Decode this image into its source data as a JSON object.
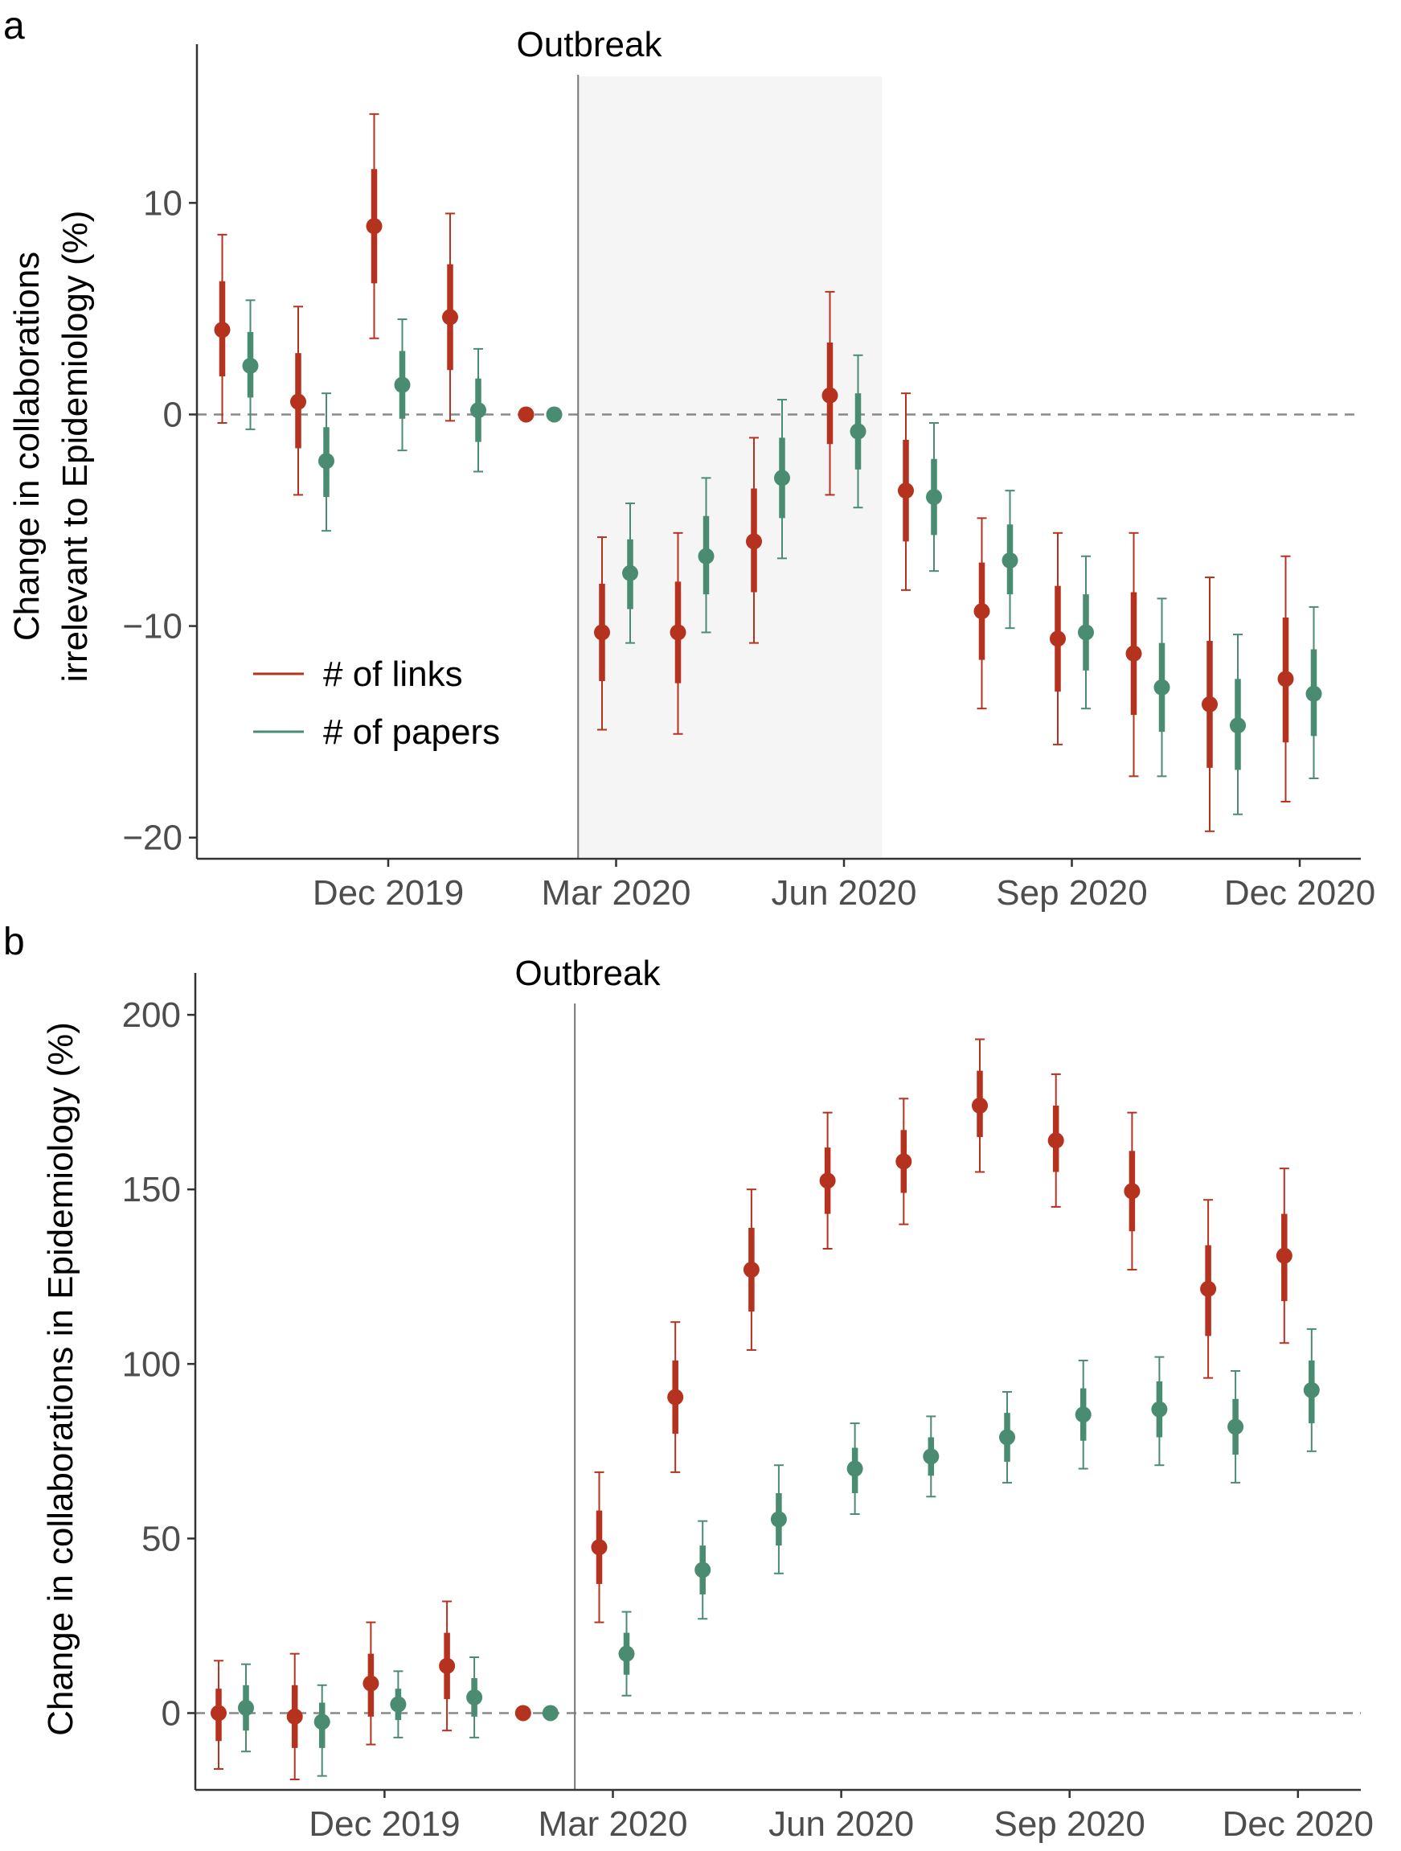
{
  "colors": {
    "links": "#b5321f",
    "papers": "#4a8c72",
    "shade": "#f5f5f5",
    "zero_line": "#888888",
    "axis": "#333333"
  },
  "chart_data": [
    {
      "panel": "a",
      "type": "scatter",
      "ylabel_lines": [
        "Change in collaborations",
        "irrelevant to Epidemiology (%)"
      ],
      "annotation": "Outbreak",
      "ylim": [
        -21,
        17.5
      ],
      "y_ticks": [
        10,
        0,
        -10,
        -20
      ],
      "y_tick_labels": [
        "10",
        "0",
        "−10",
        "−20"
      ],
      "x_tick_labels": [
        "Dec 2019",
        "Mar 2020",
        "Jun 2020",
        "Sep 2020",
        "Dec 2020"
      ],
      "x_tick_months": [
        3,
        6,
        9,
        12,
        15
      ],
      "outbreak_month": 5.5,
      "shaded_months": [
        5.5,
        9.5
      ],
      "legend_position": "left-center",
      "series": [
        {
          "name": "# of links",
          "color_key": "links",
          "points": [
            {
              "month": 1,
              "value": 4.0,
              "ci95": [
                -0.4,
                8.5
              ],
              "ci68": [
                1.8,
                6.3
              ]
            },
            {
              "month": 2,
              "value": 0.6,
              "ci95": [
                -3.8,
                5.1
              ],
              "ci68": [
                -1.6,
                2.9
              ]
            },
            {
              "month": 3,
              "value": 8.9,
              "ci95": [
                3.6,
                14.2
              ],
              "ci68": [
                6.2,
                11.6
              ]
            },
            {
              "month": 4,
              "value": 4.6,
              "ci95": [
                -0.3,
                9.5
              ],
              "ci68": [
                2.1,
                7.1
              ]
            },
            {
              "month": 5,
              "value": 0.0
            },
            {
              "month": 6,
              "value": -10.3,
              "ci95": [
                -14.9,
                -5.8
              ],
              "ci68": [
                -12.6,
                -8.0
              ]
            },
            {
              "month": 7,
              "value": -10.3,
              "ci95": [
                -15.1,
                -5.6
              ],
              "ci68": [
                -12.7,
                -7.9
              ]
            },
            {
              "month": 8,
              "value": -6.0,
              "ci95": [
                -10.8,
                -1.1
              ],
              "ci68": [
                -8.4,
                -3.5
              ]
            },
            {
              "month": 9,
              "value": 0.9,
              "ci95": [
                -3.8,
                5.8
              ],
              "ci68": [
                -1.4,
                3.4
              ]
            },
            {
              "month": 10,
              "value": -3.6,
              "ci95": [
                -8.3,
                1.0
              ],
              "ci68": [
                -6.0,
                -1.2
              ]
            },
            {
              "month": 11,
              "value": -9.3,
              "ci95": [
                -13.9,
                -4.9
              ],
              "ci68": [
                -11.6,
                -7.0
              ]
            },
            {
              "month": 12,
              "value": -10.6,
              "ci95": [
                -15.6,
                -5.6
              ],
              "ci68": [
                -13.1,
                -8.1
              ]
            },
            {
              "month": 13,
              "value": -11.3,
              "ci95": [
                -17.1,
                -5.6
              ],
              "ci68": [
                -14.2,
                -8.4
              ]
            },
            {
              "month": 14,
              "value": -13.7,
              "ci95": [
                -19.7,
                -7.7
              ],
              "ci68": [
                -16.7,
                -10.7
              ]
            },
            {
              "month": 15,
              "value": -12.5,
              "ci95": [
                -18.3,
                -6.7
              ],
              "ci68": [
                -15.5,
                -9.6
              ]
            }
          ]
        },
        {
          "name": "# of papers",
          "color_key": "papers",
          "points": [
            {
              "month": 1,
              "value": 2.3,
              "ci95": [
                -0.7,
                5.4
              ],
              "ci68": [
                0.8,
                3.9
              ]
            },
            {
              "month": 2,
              "value": -2.2,
              "ci95": [
                -5.5,
                1.0
              ],
              "ci68": [
                -3.9,
                -0.6
              ]
            },
            {
              "month": 3,
              "value": 1.4,
              "ci95": [
                -1.7,
                4.5
              ],
              "ci68": [
                -0.2,
                3.0
              ]
            },
            {
              "month": 4,
              "value": 0.2,
              "ci95": [
                -2.7,
                3.1
              ],
              "ci68": [
                -1.3,
                1.7
              ]
            },
            {
              "month": 5,
              "value": 0.0
            },
            {
              "month": 6,
              "value": -7.5,
              "ci95": [
                -10.8,
                -4.2
              ],
              "ci68": [
                -9.2,
                -5.9
              ]
            },
            {
              "month": 7,
              "value": -6.7,
              "ci95": [
                -10.3,
                -3.0
              ],
              "ci68": [
                -8.5,
                -4.8
              ]
            },
            {
              "month": 8,
              "value": -3.0,
              "ci95": [
                -6.8,
                0.7
              ],
              "ci68": [
                -4.9,
                -1.1
              ]
            },
            {
              "month": 9,
              "value": -0.8,
              "ci95": [
                -4.4,
                2.8
              ],
              "ci68": [
                -2.6,
                1.0
              ]
            },
            {
              "month": 10,
              "value": -3.9,
              "ci95": [
                -7.4,
                -0.4
              ],
              "ci68": [
                -5.7,
                -2.1
              ]
            },
            {
              "month": 11,
              "value": -6.9,
              "ci95": [
                -10.1,
                -3.6
              ],
              "ci68": [
                -8.5,
                -5.2
              ]
            },
            {
              "month": 12,
              "value": -10.3,
              "ci95": [
                -13.9,
                -6.7
              ],
              "ci68": [
                -12.1,
                -8.5
              ]
            },
            {
              "month": 13,
              "value": -12.9,
              "ci95": [
                -17.1,
                -8.7
              ],
              "ci68": [
                -15.0,
                -10.8
              ]
            },
            {
              "month": 14,
              "value": -14.7,
              "ci95": [
                -18.9,
                -10.4
              ],
              "ci68": [
                -16.8,
                -12.5
              ]
            },
            {
              "month": 15,
              "value": -13.2,
              "ci95": [
                -17.2,
                -9.1
              ],
              "ci68": [
                -15.2,
                -11.1
              ]
            }
          ]
        }
      ]
    },
    {
      "panel": "b",
      "type": "scatter",
      "ylabel_lines": [
        "Change in collaborations in Epidemiology (%)"
      ],
      "annotation": "Outbreak",
      "ylim": [
        -22,
        212
      ],
      "y_ticks": [
        200,
        150,
        100,
        50,
        0
      ],
      "y_tick_labels": [
        "200",
        "150",
        "100",
        "50",
        "0"
      ],
      "x_tick_labels": [
        "Dec 2019",
        "Mar 2020",
        "Jun 2020",
        "Sep 2020",
        "Dec 2020"
      ],
      "x_tick_months": [
        3,
        6,
        9,
        12,
        15
      ],
      "outbreak_month": 5.5,
      "series": [
        {
          "name": "# of links",
          "color_key": "links",
          "points": [
            {
              "month": 1,
              "value": 0.0,
              "ci95": [
                -16,
                15
              ],
              "ci68": [
                -8,
                7
              ]
            },
            {
              "month": 2,
              "value": -1.0,
              "ci95": [
                -19,
                17
              ],
              "ci68": [
                -10,
                8
              ]
            },
            {
              "month": 3,
              "value": 8.5,
              "ci95": [
                -9,
                26
              ],
              "ci68": [
                -1,
                17
              ]
            },
            {
              "month": 4,
              "value": 13.5,
              "ci95": [
                -5,
                32
              ],
              "ci68": [
                4,
                23
              ]
            },
            {
              "month": 5,
              "value": 0.0
            },
            {
              "month": 6,
              "value": 47.5,
              "ci95": [
                26,
                69
              ],
              "ci68": [
                37,
                58
              ]
            },
            {
              "month": 7,
              "value": 90.5,
              "ci95": [
                69,
                112
              ],
              "ci68": [
                80,
                101
              ]
            },
            {
              "month": 8,
              "value": 127.0,
              "ci95": [
                104,
                150
              ],
              "ci68": [
                115,
                139
              ]
            },
            {
              "month": 9,
              "value": 152.5,
              "ci95": [
                133,
                172
              ],
              "ci68": [
                143,
                162
              ]
            },
            {
              "month": 10,
              "value": 158.0,
              "ci95": [
                140,
                176
              ],
              "ci68": [
                149,
                167
              ]
            },
            {
              "month": 11,
              "value": 174.0,
              "ci95": [
                155,
                193
              ],
              "ci68": [
                165,
                184
              ]
            },
            {
              "month": 12,
              "value": 164.0,
              "ci95": [
                145,
                183
              ],
              "ci68": [
                155,
                174
              ]
            },
            {
              "month": 13,
              "value": 149.5,
              "ci95": [
                127,
                172
              ],
              "ci68": [
                138,
                161
              ]
            },
            {
              "month": 14,
              "value": 121.5,
              "ci95": [
                96,
                147
              ],
              "ci68": [
                108,
                134
              ]
            },
            {
              "month": 15,
              "value": 131.0,
              "ci95": [
                106,
                156
              ],
              "ci68": [
                118,
                143
              ]
            }
          ]
        },
        {
          "name": "# of papers",
          "color_key": "papers",
          "points": [
            {
              "month": 1,
              "value": 1.5,
              "ci95": [
                -11,
                14
              ],
              "ci68": [
                -5,
                8
              ]
            },
            {
              "month": 2,
              "value": -2.5,
              "ci95": [
                -18,
                8
              ],
              "ci68": [
                -10,
                3
              ]
            },
            {
              "month": 3,
              "value": 2.5,
              "ci95": [
                -7,
                12
              ],
              "ci68": [
                -2,
                7
              ]
            },
            {
              "month": 4,
              "value": 4.5,
              "ci95": [
                -7,
                16
              ],
              "ci68": [
                -1,
                10
              ]
            },
            {
              "month": 5,
              "value": 0.0
            },
            {
              "month": 6,
              "value": 17.0,
              "ci95": [
                5,
                29
              ],
              "ci68": [
                11,
                23
              ]
            },
            {
              "month": 7,
              "value": 41.0,
              "ci95": [
                27,
                55
              ],
              "ci68": [
                34,
                48
              ]
            },
            {
              "month": 8,
              "value": 55.5,
              "ci95": [
                40,
                71
              ],
              "ci68": [
                48,
                63
              ]
            },
            {
              "month": 9,
              "value": 70.0,
              "ci95": [
                57,
                83
              ],
              "ci68": [
                63,
                76
              ]
            },
            {
              "month": 10,
              "value": 73.5,
              "ci95": [
                62,
                85
              ],
              "ci68": [
                68,
                79
              ]
            },
            {
              "month": 11,
              "value": 79.0,
              "ci95": [
                66,
                92
              ],
              "ci68": [
                72,
                86
              ]
            },
            {
              "month": 12,
              "value": 85.5,
              "ci95": [
                70,
                101
              ],
              "ci68": [
                78,
                93
              ]
            },
            {
              "month": 13,
              "value": 87.0,
              "ci95": [
                71,
                102
              ],
              "ci68": [
                79,
                95
              ]
            },
            {
              "month": 14,
              "value": 82.0,
              "ci95": [
                66,
                98
              ],
              "ci68": [
                74,
                90
              ]
            },
            {
              "month": 15,
              "value": 92.5,
              "ci95": [
                75,
                110
              ],
              "ci68": [
                83,
                101
              ]
            }
          ]
        }
      ]
    }
  ]
}
